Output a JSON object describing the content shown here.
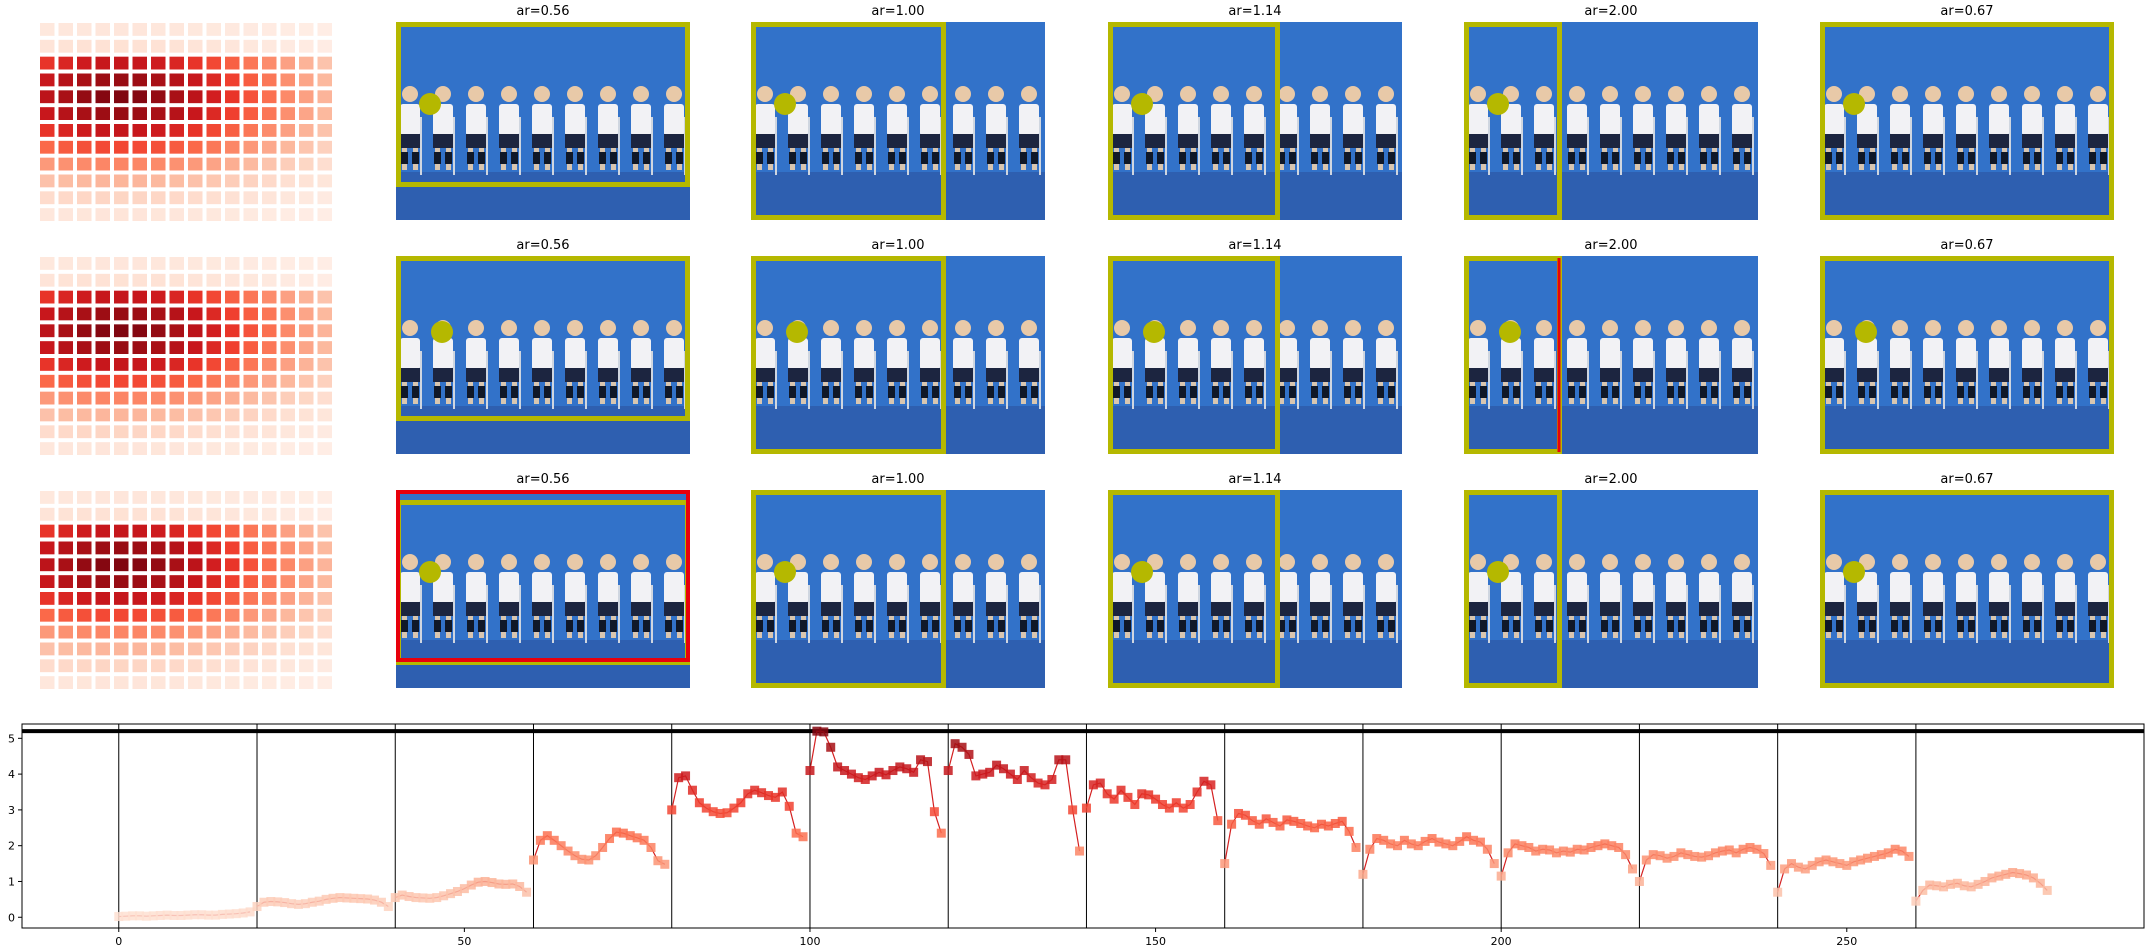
{
  "grid": {
    "columns": 6,
    "rows": 3,
    "panel_titles": [
      [
        "",
        "ar=0.56",
        "ar=1.00",
        "ar=1.14",
        "ar=2.00",
        "ar=0.67"
      ],
      [
        "",
        "ar=0.56",
        "ar=1.00",
        "ar=1.14",
        "ar=2.00",
        "ar=0.67"
      ],
      [
        "",
        "ar=0.56",
        "ar=1.00",
        "ar=1.14",
        "ar=2.00",
        "ar=0.67"
      ]
    ],
    "heatmap_palette": "Reds",
    "box_color": "#b5b800",
    "highlight_color": "#e8000b",
    "photo_background": "#3272c9"
  },
  "chart_data": {
    "type": "line",
    "xlim": [
      -14,
      293
    ],
    "ylim": [
      -0.3,
      5.4
    ],
    "xticks": [
      "0",
      "50",
      "100",
      "150",
      "200",
      "250"
    ],
    "yticks": [
      "0",
      "1",
      "2",
      "3",
      "4",
      "5"
    ],
    "reference_line": 5.2,
    "segment_boundaries": [
      0,
      20,
      40,
      60,
      80,
      100,
      120,
      140,
      160,
      180,
      200,
      220,
      240,
      260
    ],
    "colormap": "Reds",
    "segments": [
      {
        "start": 0,
        "values": [
          0.02,
          0.03,
          0.04,
          0.04,
          0.03,
          0.04,
          0.05,
          0.06,
          0.05,
          0.05,
          0.06,
          0.07,
          0.07,
          0.06,
          0.06,
          0.08,
          0.09,
          0.1,
          0.12,
          0.15
        ]
      },
      {
        "start": 20,
        "values": [
          0.3,
          0.42,
          0.44,
          0.43,
          0.41,
          0.38,
          0.36,
          0.38,
          0.42,
          0.45,
          0.5,
          0.53,
          0.55,
          0.54,
          0.53,
          0.52,
          0.51,
          0.48,
          0.42,
          0.3
        ]
      },
      {
        "start": 40,
        "values": [
          0.55,
          0.62,
          0.58,
          0.55,
          0.54,
          0.53,
          0.55,
          0.6,
          0.66,
          0.72,
          0.8,
          0.9,
          0.98,
          1.0,
          0.97,
          0.93,
          0.92,
          0.93,
          0.86,
          0.7
        ]
      },
      {
        "start": 60,
        "values": [
          1.6,
          2.15,
          2.28,
          2.15,
          2.0,
          1.85,
          1.72,
          1.62,
          1.6,
          1.72,
          1.95,
          2.2,
          2.38,
          2.35,
          2.28,
          2.22,
          2.15,
          1.95,
          1.58,
          1.48
        ]
      },
      {
        "start": 80,
        "values": [
          3.0,
          3.9,
          3.95,
          3.55,
          3.2,
          3.05,
          2.95,
          2.9,
          2.92,
          3.05,
          3.2,
          3.45,
          3.55,
          3.48,
          3.4,
          3.35,
          3.5,
          3.1,
          2.35,
          2.25
        ]
      },
      {
        "start": 100,
        "values": [
          4.1,
          5.2,
          5.18,
          4.75,
          4.2,
          4.1,
          4.0,
          3.9,
          3.85,
          3.95,
          4.05,
          3.98,
          4.1,
          4.2,
          4.15,
          4.05,
          4.4,
          4.35,
          2.95,
          2.35
        ]
      },
      {
        "start": 120,
        "values": [
          4.1,
          4.85,
          4.75,
          4.55,
          3.95,
          4.0,
          4.05,
          4.25,
          4.15,
          4.0,
          3.85,
          4.1,
          3.9,
          3.75,
          3.7,
          3.85,
          4.4,
          4.4,
          3.0,
          1.85
        ]
      },
      {
        "start": 140,
        "values": [
          3.05,
          3.7,
          3.75,
          3.45,
          3.3,
          3.55,
          3.35,
          3.15,
          3.45,
          3.42,
          3.3,
          3.15,
          3.05,
          3.2,
          3.05,
          3.15,
          3.5,
          3.8,
          3.7,
          2.7
        ]
      },
      {
        "start": 160,
        "values": [
          1.5,
          2.6,
          2.9,
          2.85,
          2.7,
          2.6,
          2.75,
          2.65,
          2.55,
          2.72,
          2.68,
          2.62,
          2.55,
          2.5,
          2.6,
          2.55,
          2.62,
          2.68,
          2.4,
          1.95
        ]
      },
      {
        "start": 180,
        "values": [
          1.2,
          1.9,
          2.2,
          2.15,
          2.05,
          2.0,
          2.15,
          2.05,
          2.0,
          2.12,
          2.2,
          2.1,
          2.05,
          2.0,
          2.12,
          2.25,
          2.15,
          2.1,
          1.9,
          1.5
        ]
      },
      {
        "start": 200,
        "values": [
          1.15,
          1.8,
          2.05,
          2.0,
          1.95,
          1.85,
          1.9,
          1.88,
          1.8,
          1.85,
          1.82,
          1.9,
          1.88,
          1.95,
          2.0,
          2.05,
          2.0,
          1.95,
          1.75,
          1.35
        ]
      },
      {
        "start": 220,
        "values": [
          1.0,
          1.6,
          1.75,
          1.72,
          1.65,
          1.7,
          1.8,
          1.75,
          1.7,
          1.68,
          1.72,
          1.8,
          1.85,
          1.88,
          1.8,
          1.9,
          1.95,
          1.9,
          1.78,
          1.45
        ]
      },
      {
        "start": 240,
        "values": [
          0.7,
          1.35,
          1.5,
          1.4,
          1.35,
          1.45,
          1.55,
          1.6,
          1.55,
          1.5,
          1.45,
          1.55,
          1.6,
          1.65,
          1.7,
          1.75,
          1.8,
          1.9,
          1.85,
          1.7
        ]
      },
      {
        "start": 260,
        "values": [
          0.45,
          0.75,
          0.9,
          0.88,
          0.85,
          0.92,
          0.95,
          0.88,
          0.85,
          0.92,
          1.0,
          1.1,
          1.15,
          1.2,
          1.25,
          1.22,
          1.18,
          1.1,
          0.95,
          0.75
        ]
      }
    ]
  }
}
